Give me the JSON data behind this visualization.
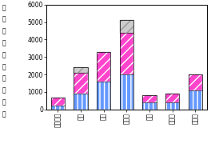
{
  "categories": [
    "四国中央",
    "西条",
    "今治",
    "松山市",
    "中予",
    "八幡浜",
    "宇和島"
  ],
  "values_A": [
    200,
    900,
    1600,
    2000,
    400,
    400,
    1100
  ],
  "values_B": [
    500,
    1200,
    1700,
    2400,
    400,
    500,
    900
  ],
  "values_AB": [
    0,
    300,
    0,
    700,
    0,
    0,
    0
  ],
  "bar_color_A": "#6699ff",
  "bar_color_B": "#ff44cc",
  "bar_color_AB": "#cccccc",
  "ylabel_chars": [
    "標",
    "準",
    "定",
    "点",
    "当",
    "た",
    "り",
    "報",
    "告",
    "数"
  ],
  "ylim": [
    0,
    6000
  ],
  "yticks": [
    0,
    1000,
    2000,
    3000,
    4000,
    5000,
    6000
  ],
  "ytick_labels": [
    "0",
    "1000",
    "2000",
    "3000",
    "4000",
    "5000",
    "6000"
  ],
  "axis_fontsize": 5.5,
  "ylabel_fontsize": 5.5
}
